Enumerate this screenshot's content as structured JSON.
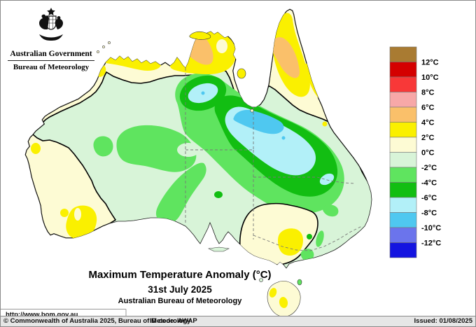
{
  "header": {
    "gov_label": "Australian Government",
    "bureau_label": "Bureau of Meteorology"
  },
  "title": {
    "main": "Maximum Temperature Anomaly (°C)",
    "date": "31st July 2025",
    "org": "Australian Bureau of Meteorology"
  },
  "url": "http://www.bom.gov.au",
  "statusbar": {
    "copyright": "© Commonwealth of Australia 2025, Bureau of Meteorology",
    "id_code": "ID code: AWAP",
    "issued": "Issued: 01/08/2025"
  },
  "legend": {
    "labels": [
      "12°C",
      "10°C",
      "8°C",
      "6°C",
      "4°C",
      "2°C",
      "0°C",
      "-2°C",
      "-4°C",
      "-6°C",
      "-8°C",
      "-10°C",
      "-12°C"
    ],
    "colors": [
      "#A97B32",
      "#D40000",
      "#F83838",
      "#F7A8A8",
      "#FAC06A",
      "#FAF000",
      "#FDFBD4",
      "#D8F4D8",
      "#5FE45F",
      "#12BE12",
      "#B2F0F8",
      "#4FC8F0",
      "#6B74EC",
      "#1414E0"
    ]
  },
  "palette": {
    "brown": "#A97B32",
    "darkred": "#D40000",
    "red": "#F83838",
    "pink": "#F7A8A8",
    "orange": "#FAC06A",
    "yellow": "#FAF000",
    "cream": "#FDFBD4",
    "palegreen": "#D8F4D8",
    "green": "#5FE45F",
    "darkgreen": "#12BE12",
    "lightcyan": "#B2F0F8",
    "cyan": "#4FC8F0",
    "blueviolet": "#6B74EC",
    "blue": "#1414E0"
  },
  "map_regions": [
    {
      "color": "cyan",
      "anomaly": "-8 to -10°C",
      "area": "core of cold anomaly over southern NT into western Queensland"
    },
    {
      "color": "light-cyan",
      "anomaly": "-6 to -8°C",
      "area": "band surrounding cold core in the central-eastern interior"
    },
    {
      "color": "dark-green",
      "anomaly": "-4 to -6°C",
      "area": "broad ring from central NT through western QLD toward northern NSW"
    },
    {
      "color": "green",
      "anomaly": "-2 to -4°C",
      "area": "much of central Australia and interior WA, Bight coast"
    },
    {
      "color": "pale-green",
      "anomaly": "0 to -2°C",
      "area": "most remaining inland and southern areas"
    },
    {
      "color": "cream",
      "anomaly": "0 to +2°C",
      "area": "northern coastal band, WA west and south coasts, southeast interior (western NSW/Victoria), Tasmania"
    },
    {
      "color": "yellow",
      "anomaly": "+2 to +4°C",
      "area": "Top End, Kimberley coast, Cape York, southwest WA, western Victoria, spots in Tasmania"
    },
    {
      "color": "orange",
      "anomaly": "+4 to +6°C",
      "area": "central Top End and inland Cape York Peninsula"
    }
  ]
}
